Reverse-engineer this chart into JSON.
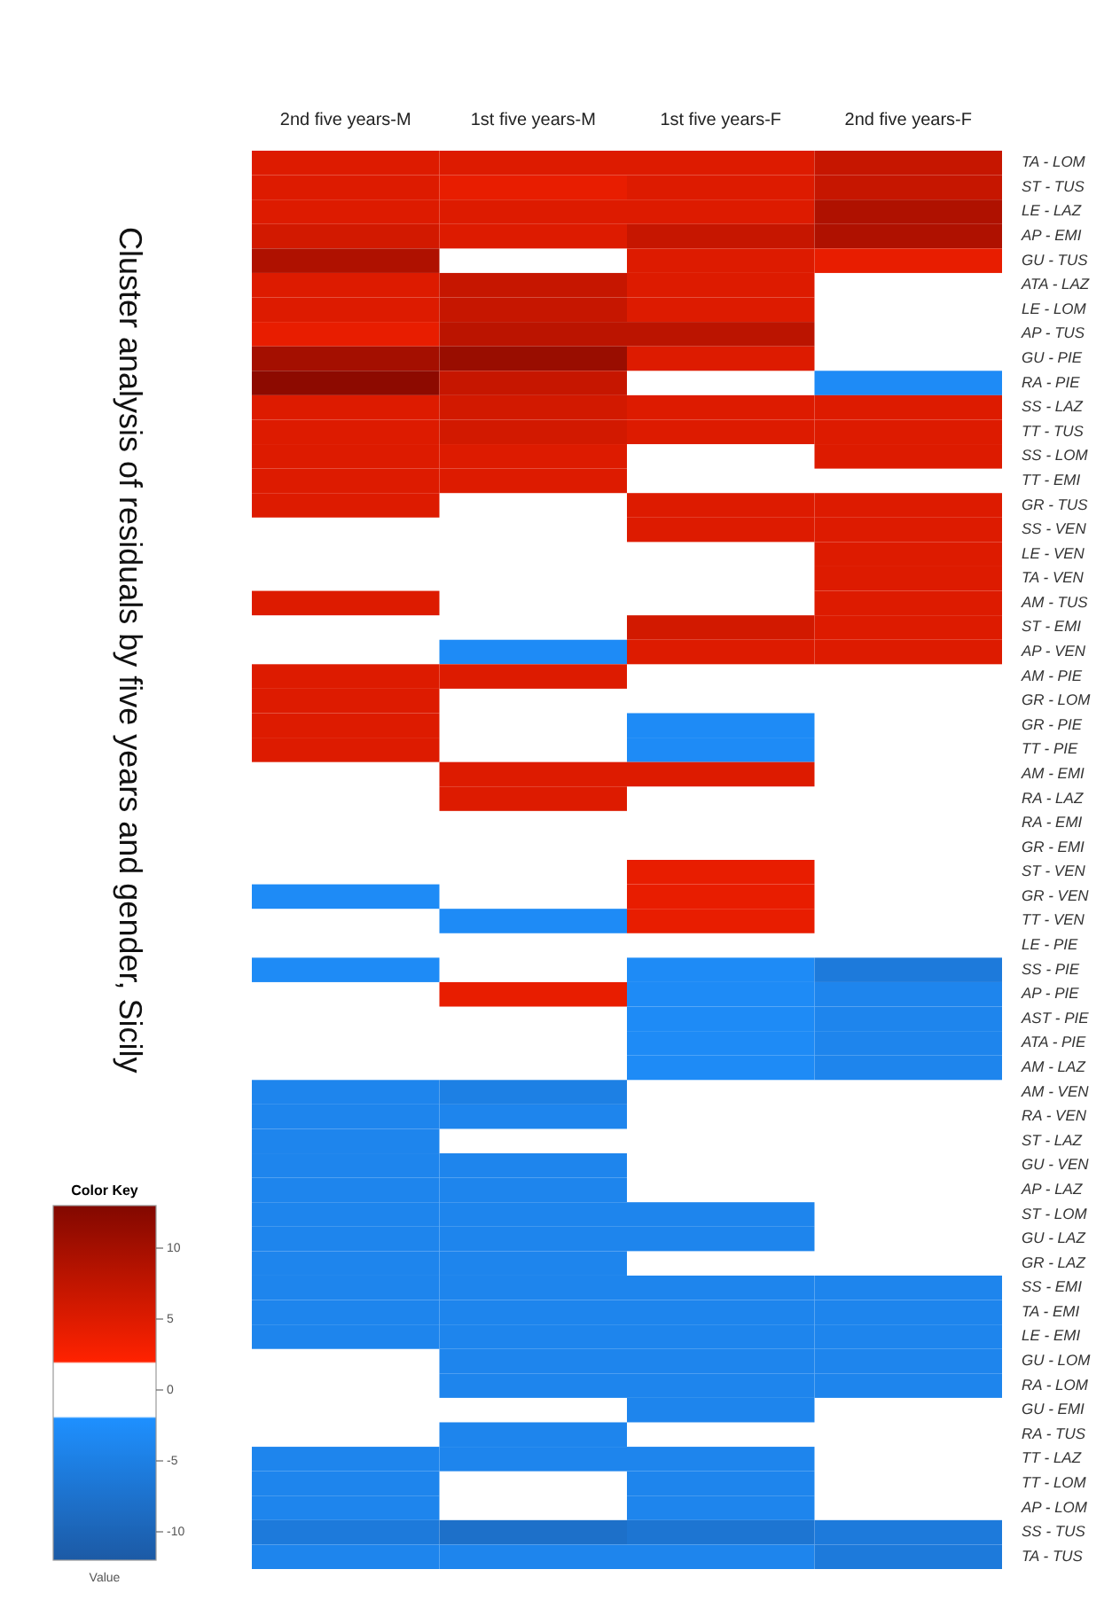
{
  "chart_data": {
    "type": "heatmap",
    "title": "Cluster analysis of residuals by five years and gender, Sicily",
    "legend_title": "Color Key",
    "clabel": "Value",
    "categories": [
      "2nd five years-M",
      "1st five years-M",
      "1st five years-F",
      "2nd five years-F"
    ],
    "y_categories": [
      "TA - LOM",
      "ST - TUS",
      "LE - LAZ",
      "AP - EMI",
      "GU - TUS",
      "ATA - LAZ",
      "LE - LOM",
      "AP - TUS",
      "GU - PIE",
      "RA - PIE",
      "SS - LAZ",
      "TT - TUS",
      "SS - LOM",
      "TT - EMI",
      "GR - TUS",
      "SS - VEN",
      "LE - VEN",
      "TA - VEN",
      "AM - TUS",
      "ST - EMI",
      "AP - VEN",
      "AM - PIE",
      "GR - LOM",
      "GR - PIE",
      "TT - PIE",
      "AM - EMI",
      "RA - LAZ",
      "RA - EMI",
      "GR - EMI",
      "ST - VEN",
      "GR - VEN",
      "TT - VEN",
      "LE - PIE",
      "SS - PIE",
      "AP - PIE",
      "AST - PIE",
      "ATA - PIE",
      "AM - LAZ",
      "AM - VEN",
      "RA - VEN",
      "ST - LAZ",
      "GU - VEN",
      "AP - LAZ",
      "ST - LOM",
      "GU - LAZ",
      "GR - LAZ",
      "SS - EMI",
      "TA - EMI",
      "LE - EMI",
      "GU - LOM",
      "RA - LOM",
      "GU - EMI",
      "RA - TUS",
      "TT - LAZ",
      "TT - LOM",
      "AP - LOM",
      "SS - TUS",
      "TA - TUS"
    ],
    "cells": [
      [
        5,
        5,
        5,
        7
      ],
      [
        5,
        4,
        5,
        7
      ],
      [
        5,
        5,
        5,
        9
      ],
      [
        6,
        5,
        7,
        9
      ],
      [
        9,
        null,
        5,
        4
      ],
      [
        5,
        7,
        5,
        null
      ],
      [
        5,
        7,
        5,
        null
      ],
      [
        4,
        8,
        8,
        null
      ],
      [
        10,
        11,
        5,
        null
      ],
      [
        12,
        7,
        null,
        -3
      ],
      [
        5,
        6,
        5,
        5
      ],
      [
        5,
        6,
        5,
        5
      ],
      [
        5,
        5,
        null,
        5
      ],
      [
        5,
        5,
        null,
        null
      ],
      [
        5,
        null,
        5,
        5
      ],
      [
        null,
        null,
        5,
        5
      ],
      [
        null,
        null,
        null,
        5
      ],
      [
        null,
        null,
        null,
        5
      ],
      [
        5,
        null,
        null,
        5
      ],
      [
        null,
        null,
        6,
        5
      ],
      [
        null,
        -3,
        5,
        5
      ],
      [
        5,
        5,
        null,
        null
      ],
      [
        5,
        null,
        null,
        null
      ],
      [
        5,
        null,
        -3,
        null
      ],
      [
        5,
        null,
        -3,
        null
      ],
      [
        null,
        5,
        5,
        null
      ],
      [
        null,
        5,
        null,
        null
      ],
      [
        null,
        null,
        null,
        null
      ],
      [
        null,
        null,
        null,
        null
      ],
      [
        null,
        null,
        4,
        null
      ],
      [
        -3,
        null,
        4,
        null
      ],
      [
        null,
        -3,
        4,
        null
      ],
      [
        null,
        null,
        null,
        null
      ],
      [
        -3,
        null,
        -3,
        -6
      ],
      [
        null,
        4,
        -3,
        -4
      ],
      [
        null,
        null,
        -3,
        -4
      ],
      [
        null,
        null,
        -3,
        -4
      ],
      [
        null,
        null,
        -3,
        -4
      ],
      [
        -4,
        -5,
        null,
        null
      ],
      [
        -4,
        -4,
        null,
        null
      ],
      [
        -4,
        null,
        null,
        null
      ],
      [
        -4,
        -4,
        null,
        null
      ],
      [
        -4,
        -4,
        null,
        null
      ],
      [
        -4,
        -4,
        -4,
        null
      ],
      [
        -4,
        -4,
        -4,
        null
      ],
      [
        -4,
        -4,
        null,
        null
      ],
      [
        -4,
        -4,
        -4,
        -4
      ],
      [
        -4,
        -4,
        -4,
        -4
      ],
      [
        -4,
        -4,
        -4,
        -4
      ],
      [
        null,
        -4,
        -4,
        -4
      ],
      [
        null,
        -4,
        -4,
        -4
      ],
      [
        null,
        null,
        -4,
        null
      ],
      [
        null,
        -4,
        null,
        null
      ],
      [
        -4,
        -4,
        -4,
        null
      ],
      [
        -4,
        null,
        -4,
        null
      ],
      [
        -4,
        null,
        -4,
        null
      ],
      [
        -6,
        -8,
        -7,
        -6
      ],
      [
        -4,
        -4,
        -4,
        -6
      ]
    ],
    "clim": [
      -12,
      13
    ],
    "cticks": [
      -10,
      -5,
      0,
      5,
      10
    ]
  }
}
